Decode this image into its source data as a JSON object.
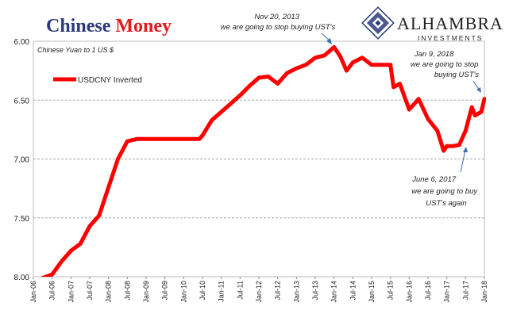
{
  "chart_data": {
    "type": "line",
    "title_part1": "Chinese ",
    "title_part2": "Money",
    "subtitle": "Chinese Yuan to 1 US $",
    "xlabel": "",
    "ylabel": "",
    "ylim": [
      6.0,
      8.0
    ],
    "y_inverted": true,
    "yticks": [
      "6.00",
      "6.50",
      "7.00",
      "7.50",
      "8.00"
    ],
    "ytick_values": [
      6.0,
      6.5,
      7.0,
      7.5,
      8.0
    ],
    "xticks": [
      "Jan-06",
      "Jul-06",
      "Jan-07",
      "Jul-07",
      "Jan-08",
      "Jul-08",
      "Jan-09",
      "Jul-09",
      "Jan-10",
      "Jul-10",
      "Jan-11",
      "Jul-11",
      "Jan-12",
      "Jul-12",
      "Jan-13",
      "Jul-13",
      "Jan-14",
      "Jul-14",
      "Jan-15",
      "Jul-15",
      "Jan-16",
      "Jul-16",
      "Jan-17",
      "Jul-17",
      "Jan-18"
    ],
    "grid": true,
    "legend_position": "top-left",
    "color": "#ff0000",
    "series": [
      {
        "name": "USDCNY Inverted",
        "x": [
          "2006-01",
          "2006-04",
          "2006-07",
          "2006-10",
          "2007-01",
          "2007-04",
          "2007-07",
          "2007-10",
          "2008-01",
          "2008-04",
          "2008-07",
          "2008-10",
          "2009-01",
          "2009-04",
          "2009-07",
          "2009-10",
          "2010-01",
          "2010-04",
          "2010-06",
          "2010-07",
          "2010-10",
          "2011-01",
          "2011-04",
          "2011-07",
          "2011-10",
          "2012-01",
          "2012-04",
          "2012-07",
          "2012-10",
          "2013-01",
          "2013-04",
          "2013-07",
          "2013-10",
          "2014-01",
          "2014-03",
          "2014-05",
          "2014-07",
          "2014-10",
          "2015-01",
          "2015-04",
          "2015-07",
          "2015-08",
          "2015-10",
          "2016-01",
          "2016-04",
          "2016-07",
          "2016-10",
          "2016-12",
          "2017-01",
          "2017-03",
          "2017-05",
          "2017-07",
          "2017-09",
          "2017-10",
          "2017-12",
          "2018-01"
        ],
        "values": [
          8.07,
          8.01,
          7.98,
          7.87,
          7.78,
          7.72,
          7.57,
          7.48,
          7.24,
          7.0,
          6.85,
          6.83,
          6.83,
          6.83,
          6.83,
          6.83,
          6.83,
          6.83,
          6.83,
          6.8,
          6.67,
          6.6,
          6.53,
          6.46,
          6.38,
          6.31,
          6.3,
          6.36,
          6.27,
          6.23,
          6.2,
          6.14,
          6.12,
          6.05,
          6.13,
          6.25,
          6.18,
          6.14,
          6.2,
          6.2,
          6.2,
          6.39,
          6.36,
          6.58,
          6.49,
          6.66,
          6.76,
          6.93,
          6.89,
          6.89,
          6.88,
          6.76,
          6.56,
          6.63,
          6.6,
          6.49
        ]
      }
    ],
    "annotations": [
      {
        "lines": [
          "Nov 20, 2013",
          "we are going to stop buying UST's"
        ],
        "x": "2013-11",
        "y": 6.03
      },
      {
        "lines": [
          "Jan 9, 2018",
          "we are going to stop",
          "buying UST's"
        ],
        "x": "2018-01",
        "y": 6.49
      },
      {
        "lines": [
          "June 6, 2017",
          "we are going to buy",
          "UST's again"
        ],
        "x": "2017-06",
        "y": 6.86
      }
    ]
  },
  "logo": {
    "name": "ALHAMBRA",
    "sub": "INVESTMENTS",
    "accent_color": "#2b3a7a"
  }
}
